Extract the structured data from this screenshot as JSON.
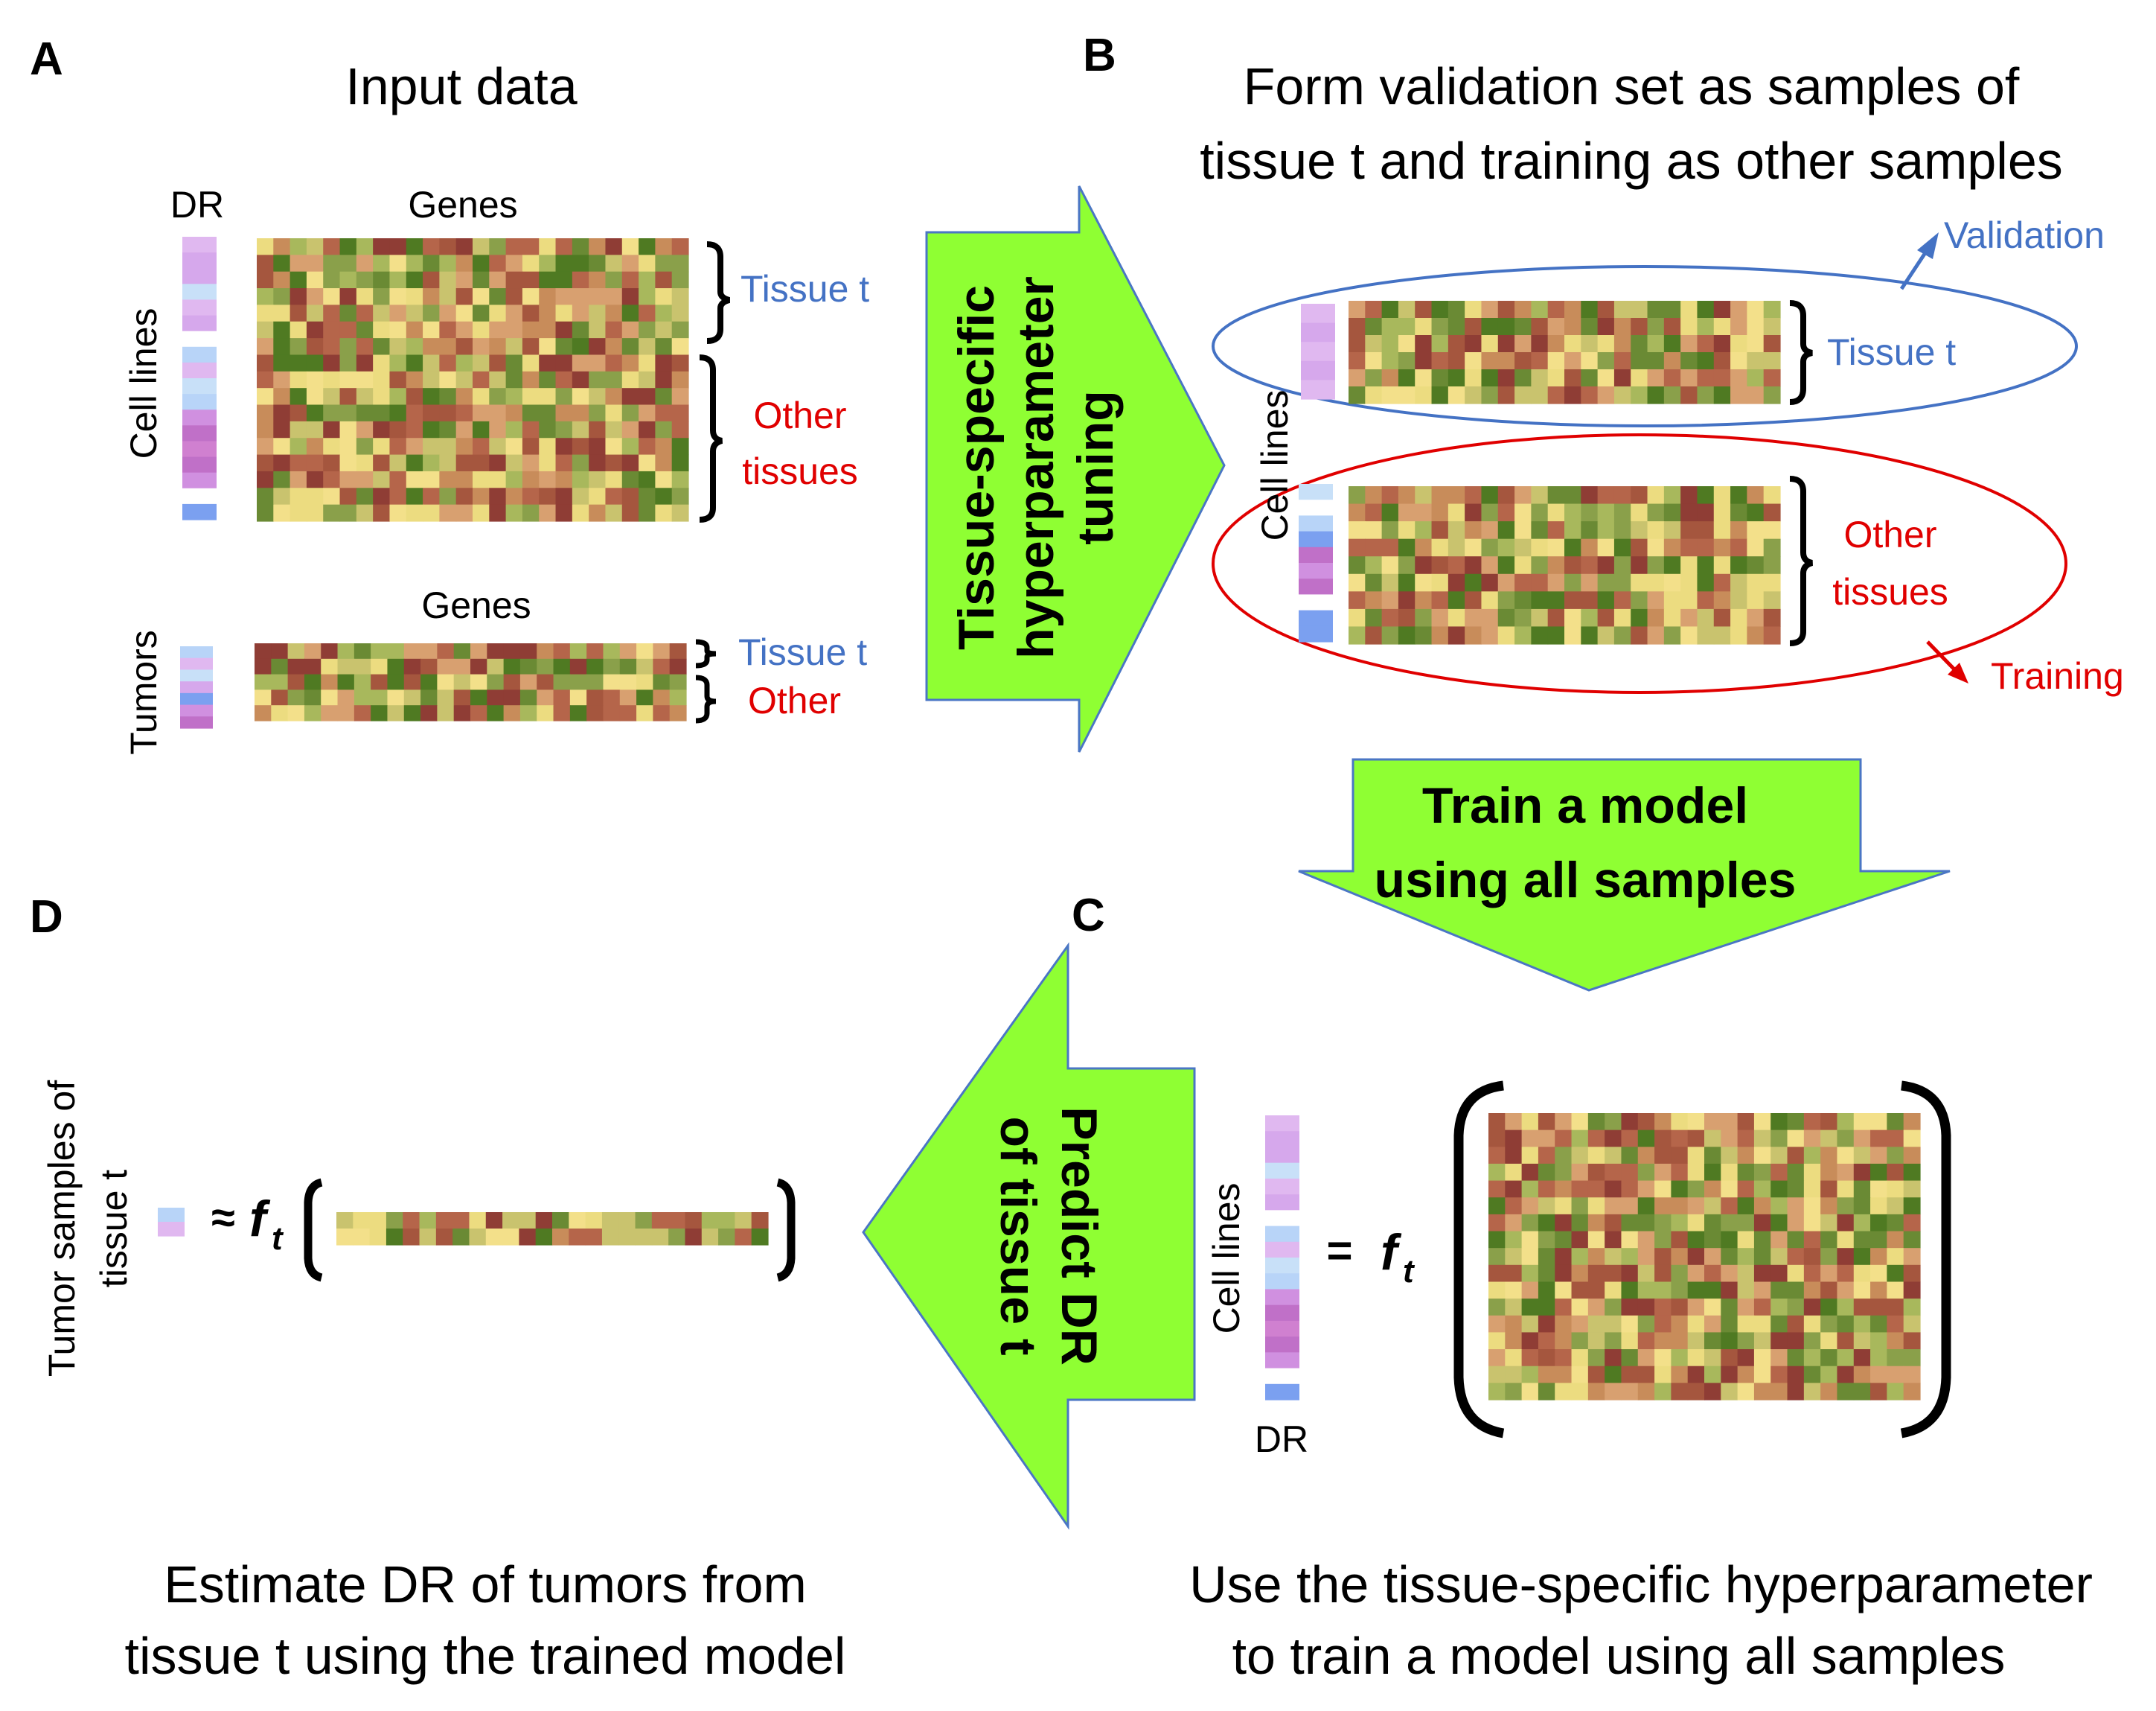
{
  "panels": {
    "a": {
      "letter": "A",
      "title": "Input data",
      "dr_label": "DR",
      "genes_label_top": "Genes",
      "genes_label_bottom": "Genes",
      "cell_lines_label": "Cell lines",
      "tumors_label": "Tumors",
      "tissue_t_label": "Tissue t",
      "other_tissues_line1": "Other",
      "other_tissues_line2": "tissues",
      "tumor_tissue_t_label": "Tissue t",
      "tumor_other_label": "Other"
    },
    "b": {
      "letter": "B",
      "title_line1": "Form validation set as samples of",
      "title_line2": "tissue t and training as other samples",
      "validation_label": "Validation",
      "training_label": "Training",
      "cell_lines_label": "Cell lines",
      "tissue_t_label": "Tissue t",
      "other_tissues_line1": "Other",
      "other_tissues_line2": "tissues"
    },
    "c": {
      "letter": "C",
      "cell_lines_label": "Cell lines",
      "dr_label": "DR",
      "equals": "=",
      "function_f": "f",
      "function_sub": "t",
      "caption_line1": "Use the tissue-specific hyperparameter",
      "caption_line2": "to train a model using all samples"
    },
    "d": {
      "letter": "D",
      "tumor_label_line1": "Tumor samples of",
      "tumor_label_line2": "tissue t",
      "approx": "≈",
      "function_f": "f",
      "function_sub": "t",
      "caption_line1": "Estimate DR of tumors from",
      "caption_line2": "tissue t using the trained model"
    }
  },
  "arrows": {
    "tuning": {
      "line1": "Tissue-specific",
      "line2": "hyperparameter",
      "line3": "tuning"
    },
    "train": {
      "line1": "Train a model",
      "line2": "using all samples"
    },
    "predict": {
      "line1": "Predict DR",
      "line2": "of tissue t"
    }
  },
  "colors": {
    "arrow_fill": "#8fff33",
    "arrow_stroke": "#4a76c4",
    "tissue_blue": "#4472c4",
    "other_red": "#e00000",
    "heatmap_palette": [
      "#ecdc80",
      "#f3e08a",
      "#c9c36e",
      "#a8b85c",
      "#8aa04a",
      "#6a8a34",
      "#4f7a22",
      "#a5563e",
      "#b5654a",
      "#8f3d35",
      "#d8a070",
      "#c88c5a"
    ],
    "dr_palette": [
      "#e0b8f0",
      "#d6a8ec",
      "#c8e0f8",
      "#b8d4f8",
      "#ffffff",
      "#d090e0",
      "#c070c8",
      "#d080d0",
      "#7ba0f0"
    ]
  }
}
